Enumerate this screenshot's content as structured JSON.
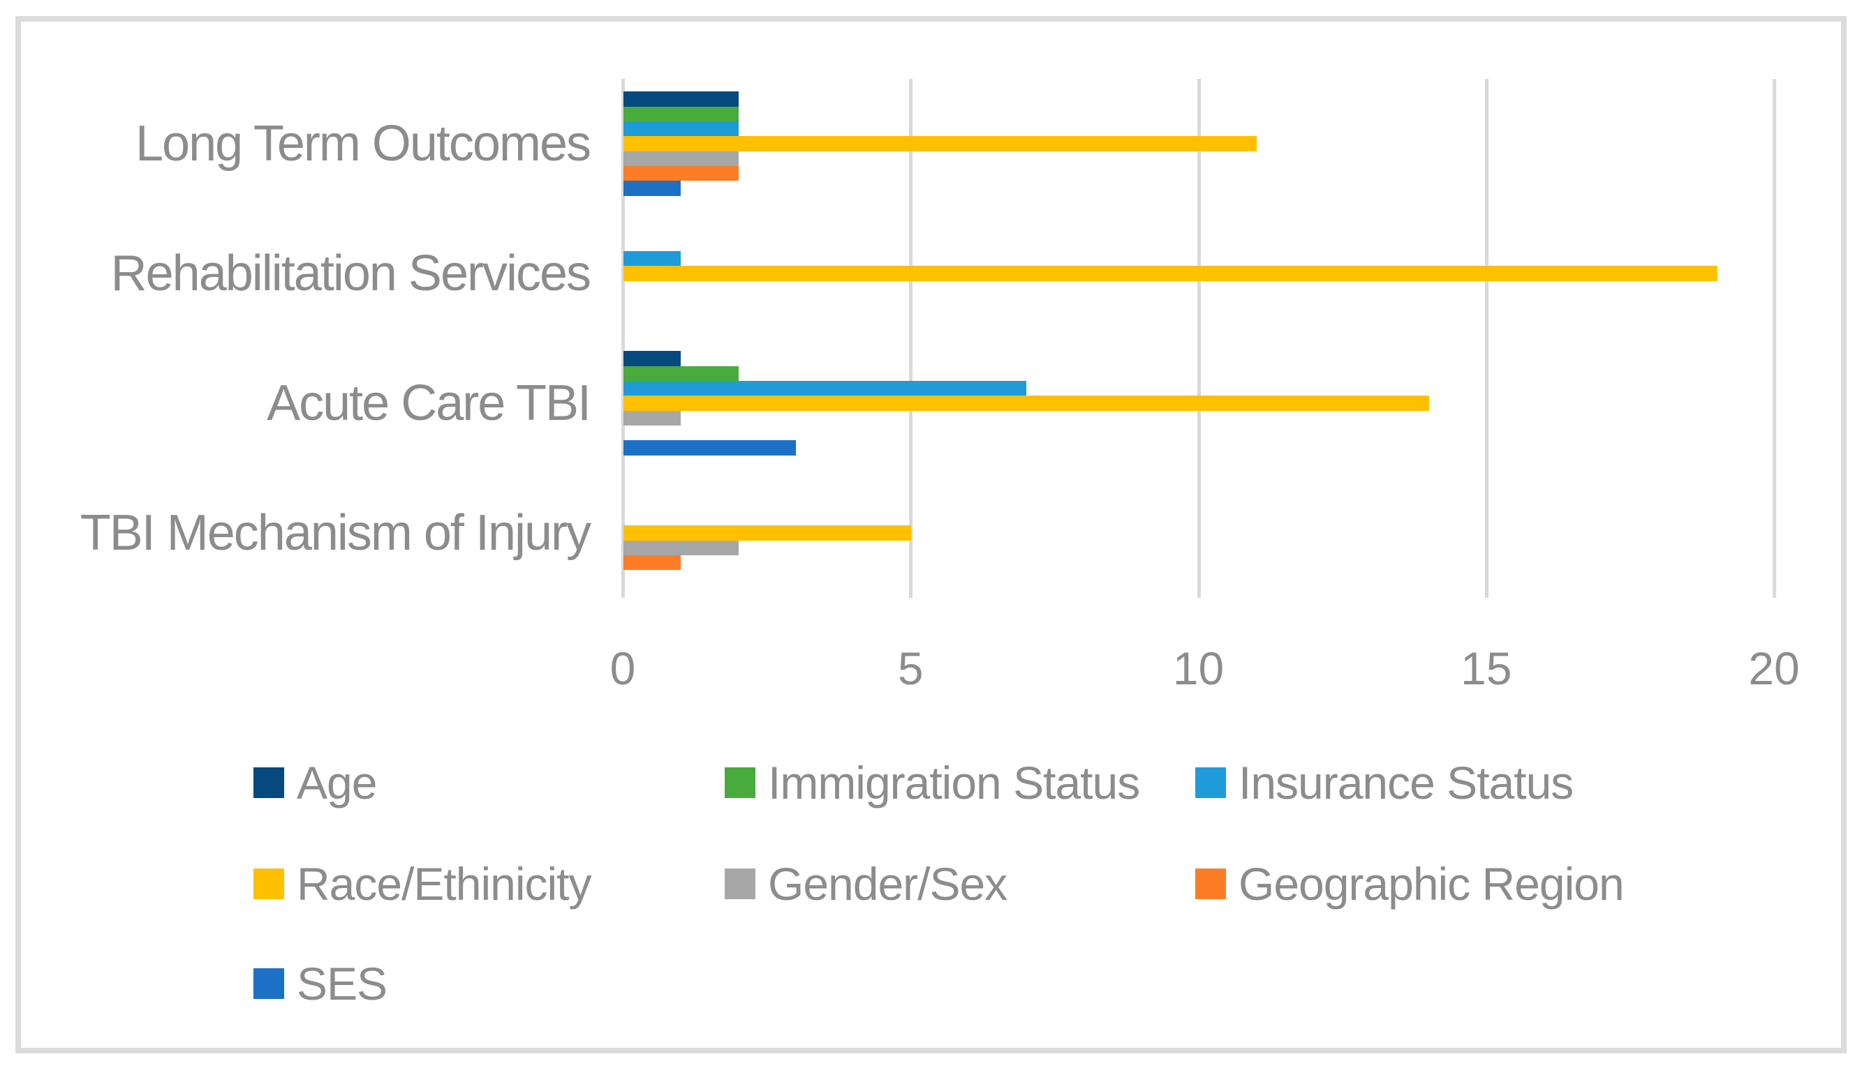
{
  "figure": {
    "background_color": "#FFFFFF",
    "frame_border_color": "#DBDBDB",
    "text_color": "#8C8C8C"
  },
  "chart_data": {
    "type": "bar",
    "orientation": "horizontal",
    "title": "",
    "categories": [
      "Long Term Outcomes",
      "Rehabilitation Services",
      "Acute Care TBI",
      "TBI Mechanism of Injury"
    ],
    "series": [
      {
        "name": "Age",
        "color": "#05497E",
        "values": [
          2,
          0,
          1,
          0
        ]
      },
      {
        "name": "Immigration Status",
        "color": "#47AC3B",
        "values": [
          2,
          0,
          2,
          0
        ]
      },
      {
        "name": "Insurance Status",
        "color": "#1F9BD7",
        "values": [
          2,
          1,
          7,
          0
        ]
      },
      {
        "name": "Race/Ethinicity",
        "color": "#FFC000",
        "values": [
          11,
          19,
          14,
          5
        ]
      },
      {
        "name": "Gender/Sex",
        "color": "#A7A7A7",
        "values": [
          2,
          0,
          1,
          2
        ]
      },
      {
        "name": "Geographic Region",
        "color": "#FC7D26",
        "values": [
          2,
          0,
          0,
          1
        ]
      },
      {
        "name": "SES",
        "color": "#1C71C7",
        "values": [
          1,
          0,
          3,
          0
        ]
      }
    ],
    "x_axis": {
      "min": 0,
      "max": 20,
      "tick_labels": [
        "0",
        "5",
        "10",
        "15",
        "20"
      ]
    },
    "grid": true,
    "gridline_color": "#D9D9D9",
    "legend_position": "bottom",
    "legend_columns_per_row": 3
  }
}
